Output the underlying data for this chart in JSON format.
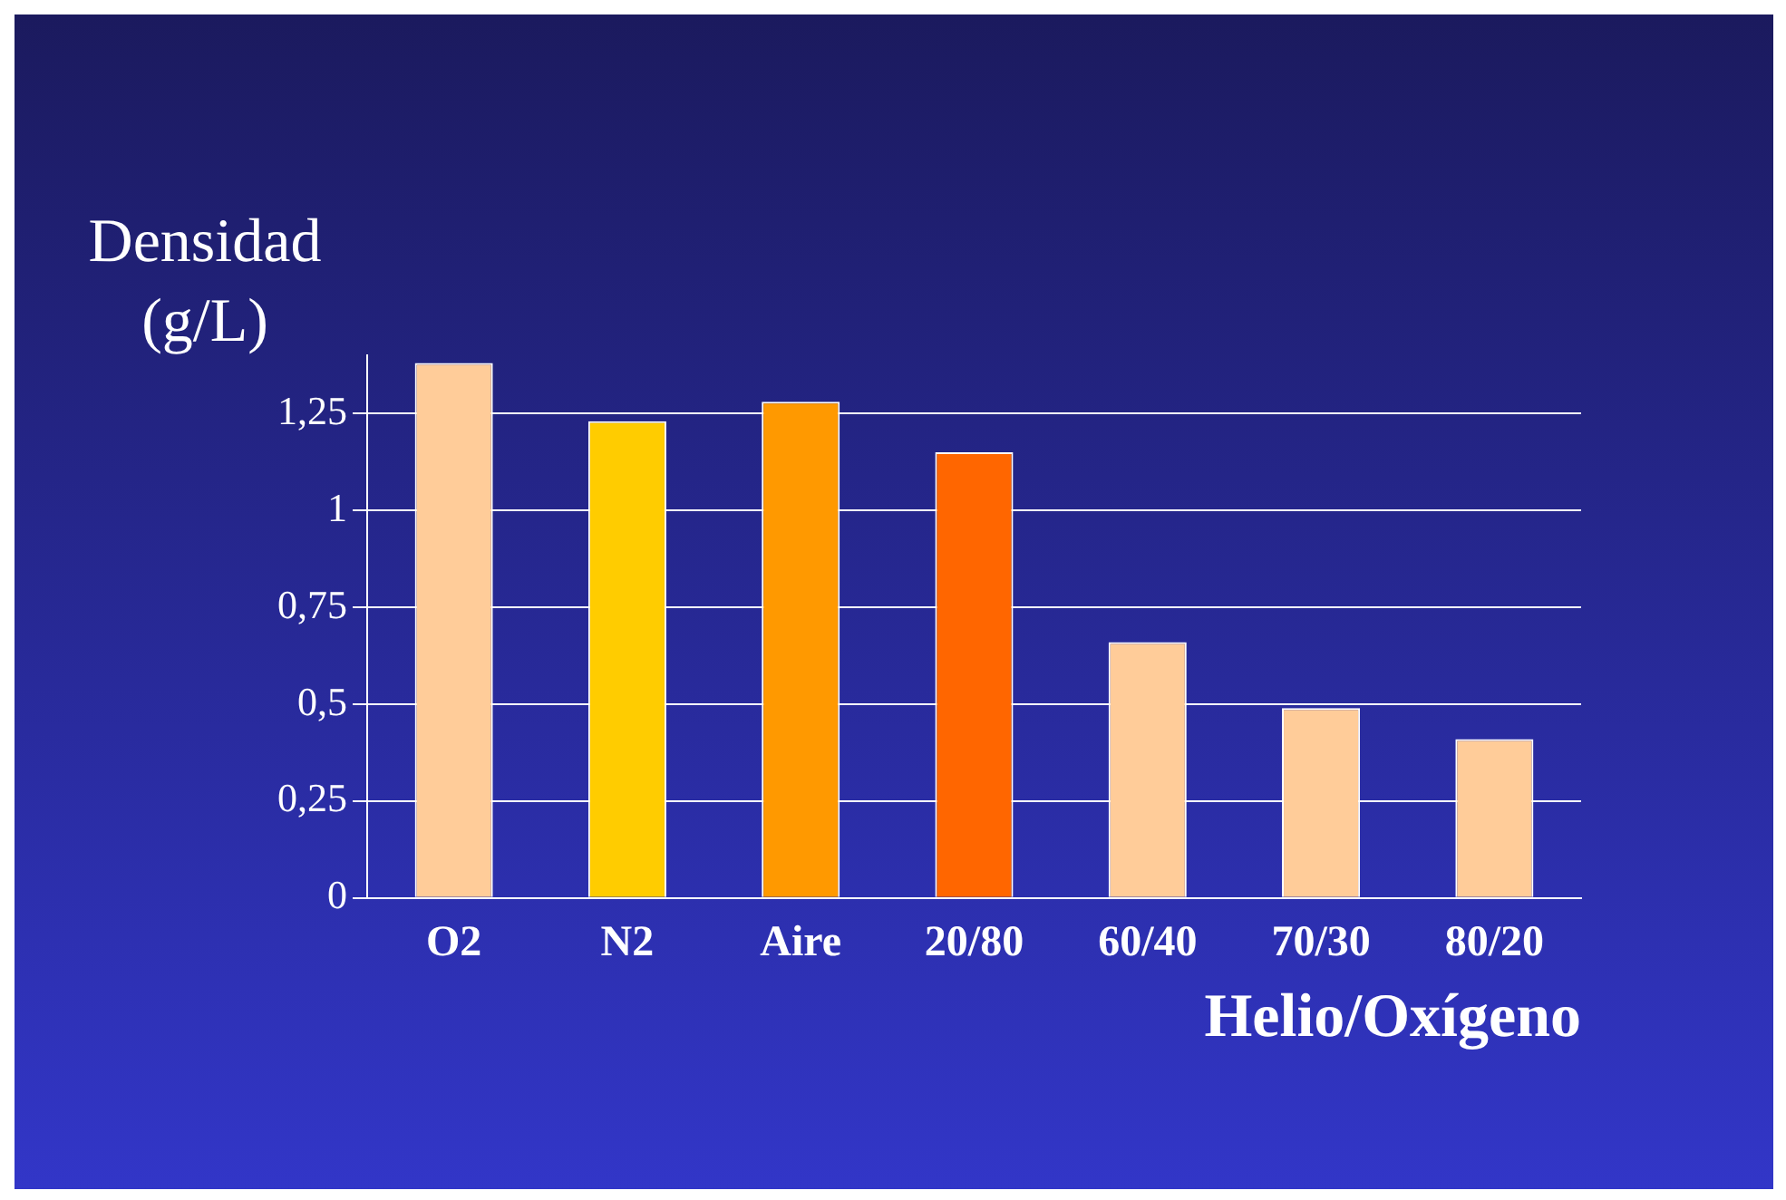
{
  "chart_data": {
    "type": "bar",
    "ylabel": "Densidad (g/L)",
    "xlabel": "Helio/Oxígeno",
    "categories": [
      "O2",
      "N2",
      "Aire",
      "20/80",
      "60/40",
      "70/30",
      "80/20"
    ],
    "values": [
      1.38,
      1.23,
      1.28,
      1.15,
      0.66,
      0.49,
      0.41
    ],
    "colors": [
      "#ffcc99",
      "#ffcc00",
      "#ff9900",
      "#ff6600",
      "#ffcc99",
      "#ffcc99",
      "#ffcc99"
    ],
    "ylim": [
      0,
      1.4
    ],
    "yticks": [
      0,
      {
        "value": 0.25,
        "label": "0,25"
      },
      {
        "value": 0.5,
        "label": "0,5"
      },
      {
        "value": 0.75,
        "label": "0,75"
      },
      1,
      {
        "value": 1.25,
        "label": "1,25"
      }
    ],
    "grid": "y"
  }
}
